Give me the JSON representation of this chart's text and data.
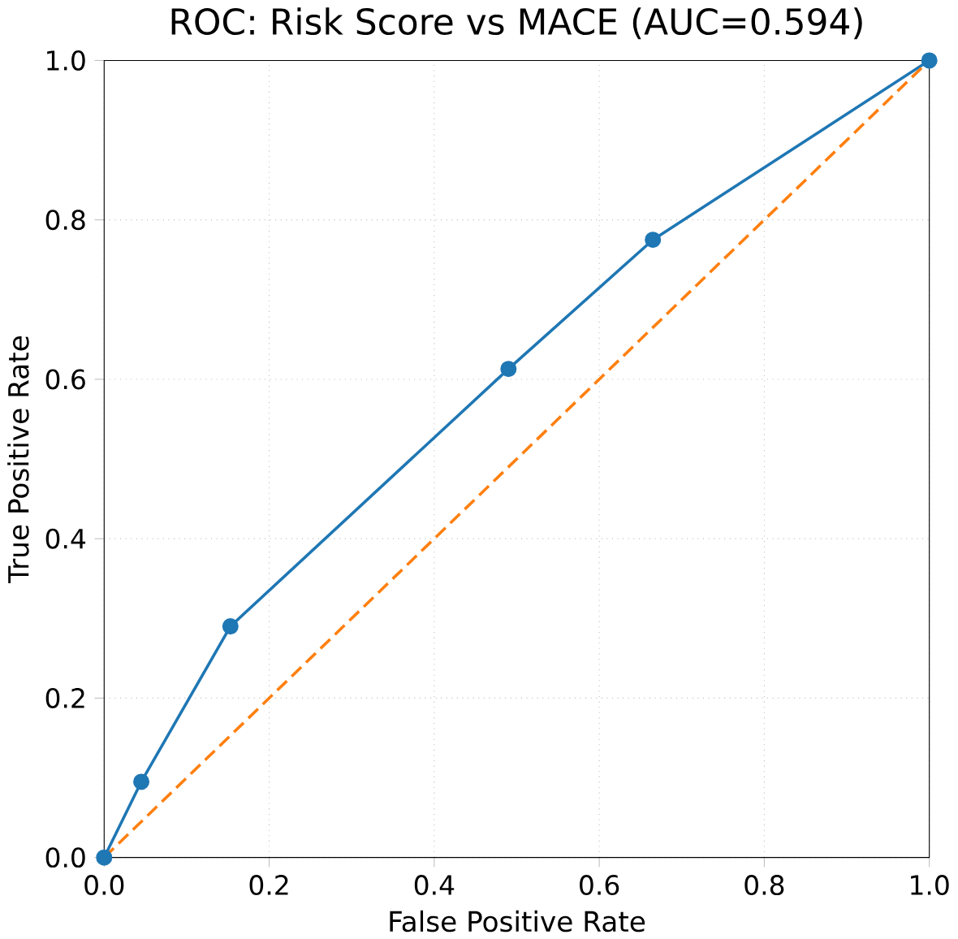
{
  "chart_data": {
    "type": "line",
    "title": "ROC: Risk Score vs MACE (AUC=0.594)",
    "xlabel": "False Positive Rate",
    "ylabel": "True Positive Rate",
    "series": [
      {
        "color": "#1f77b4",
        "marker": "circle",
        "line_style": "solid",
        "x": [
          0,
          0.045,
          0.153,
          0.49,
          0.665,
          1
        ],
        "values": [
          0,
          0.095,
          0.29,
          0.613,
          0.775,
          1
        ]
      },
      {
        "color": "#ff7f0e",
        "marker": "none",
        "line_style": "dashed",
        "x": [
          0,
          1
        ],
        "values": [
          0,
          1
        ]
      }
    ],
    "xlim": [
      0,
      1
    ],
    "ylim": [
      0,
      1
    ],
    "xticks": [
      {
        "value": 0,
        "label": "0.0"
      },
      0.2,
      0.4,
      0.6,
      0.8,
      {
        "value": 1,
        "label": "1.0"
      }
    ],
    "yticks": [
      {
        "value": 0,
        "label": "0.0"
      },
      0.2,
      0.4,
      0.6,
      0.8,
      {
        "value": 1,
        "label": "1.0"
      }
    ],
    "grid": true
  }
}
